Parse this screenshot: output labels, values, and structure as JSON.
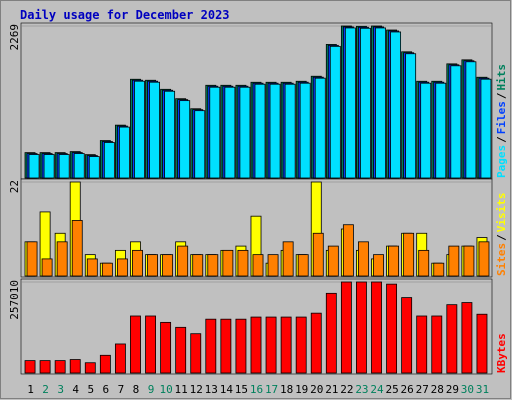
{
  "chart_data": [
    {
      "type": "bar",
      "title": "Daily usage for December 2023",
      "legend_separator": "/",
      "ylim": [
        0,
        2269
      ],
      "yticks": [
        2269
      ],
      "series": [
        {
          "name": "Hits",
          "color": "#00805c",
          "values": [
            379,
            379,
            379,
            394,
            349,
            559,
            789,
            1474,
            1459,
            1324,
            1184,
            1034,
            1384,
            1384,
            1384,
            1429,
            1429,
            1429,
            1444,
            1519,
            1994,
            2269,
            2264,
            2269,
            2209,
            1884,
            1444,
            1444,
            1704,
            1764,
            1504
          ]
        },
        {
          "name": "Files",
          "color": "#0040ff",
          "values": [
            365,
            365,
            365,
            380,
            335,
            545,
            775,
            1460,
            1445,
            1310,
            1170,
            1020,
            1370,
            1370,
            1370,
            1415,
            1415,
            1415,
            1430,
            1505,
            1980,
            2255,
            2250,
            2255,
            2195,
            1870,
            1430,
            1430,
            1690,
            1750,
            1490
          ]
        },
        {
          "name": "Pages",
          "color": "#00e0ff",
          "values": [
            350,
            350,
            350,
            365,
            320,
            530,
            760,
            1445,
            1430,
            1295,
            1155,
            1005,
            1355,
            1355,
            1355,
            1400,
            1400,
            1400,
            1415,
            1490,
            1965,
            2240,
            2235,
            2240,
            2180,
            1855,
            1415,
            1415,
            1675,
            1735,
            1475
          ]
        }
      ]
    },
    {
      "type": "bar",
      "legend_separator": "/",
      "ylim": [
        0,
        22
      ],
      "yticks": [
        22
      ],
      "series": [
        {
          "name": "Visits",
          "color": "#ffff00",
          "values": [
            8,
            15,
            10,
            22,
            5,
            3,
            6,
            8,
            5,
            5,
            8,
            5,
            5,
            6,
            7,
            14,
            3,
            6,
            5,
            22,
            6,
            11,
            6,
            4,
            7,
            10,
            10,
            3,
            5,
            7,
            9
          ]
        },
        {
          "name": "Sites",
          "color": "#ff8000",
          "values": [
            8,
            4,
            8,
            13,
            4,
            3,
            4,
            6,
            5,
            5,
            7,
            5,
            5,
            6,
            6,
            5,
            5,
            8,
            5,
            10,
            7,
            12,
            8,
            5,
            7,
            10,
            6,
            3,
            7,
            7,
            8
          ]
        }
      ]
    },
    {
      "type": "bar",
      "ylim": [
        0,
        257010
      ],
      "yticks": [
        257010
      ],
      "categories": [
        "1",
        "2",
        "3",
        "4",
        "5",
        "6",
        "7",
        "8",
        "9",
        "10",
        "11",
        "12",
        "13",
        "14",
        "15",
        "16",
        "17",
        "18",
        "19",
        "20",
        "21",
        "22",
        "23",
        "24",
        "25",
        "26",
        "27",
        "28",
        "29",
        "30",
        "31"
      ],
      "weekend": [
        false,
        true,
        true,
        false,
        false,
        false,
        false,
        false,
        true,
        true,
        false,
        false,
        false,
        false,
        false,
        true,
        true,
        false,
        false,
        false,
        false,
        false,
        true,
        true,
        false,
        false,
        false,
        false,
        false,
        true,
        true
      ],
      "weekday_color": "#000000",
      "weekend_color": "#00805c",
      "series": [
        {
          "name": "KBytes",
          "color": "#ff0000",
          "values": [
            35000,
            35000,
            35000,
            38000,
            29000,
            50000,
            82000,
            161000,
            161000,
            143000,
            129000,
            111000,
            152000,
            152000,
            152000,
            158000,
            158000,
            158000,
            158000,
            169000,
            225000,
            257010,
            257010,
            257010,
            251000,
            213000,
            161000,
            161000,
            193000,
            199000,
            166000
          ]
        }
      ]
    }
  ]
}
